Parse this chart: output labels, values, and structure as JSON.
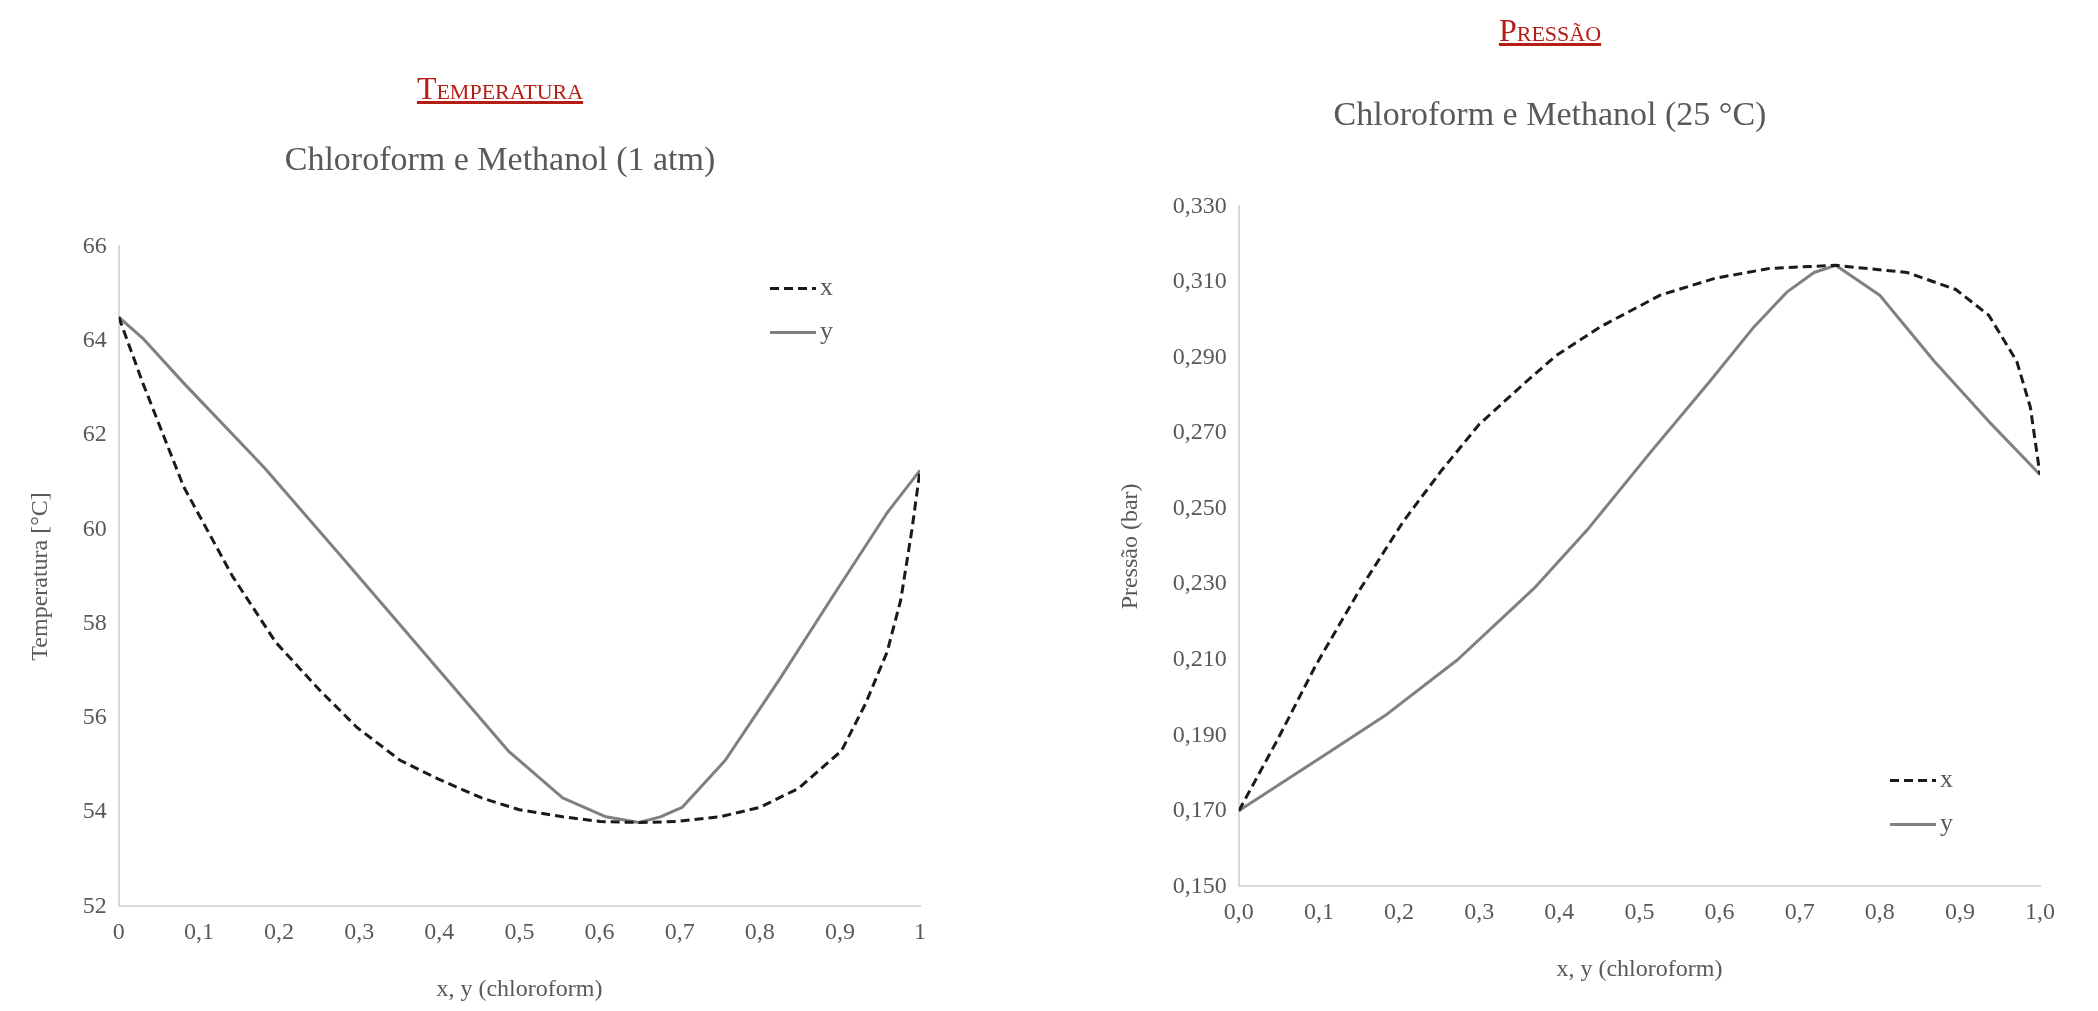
{
  "chart_data": [
    {
      "type": "line",
      "title": "Temperatura",
      "subtitle": "Chloroform e Methanol (1 atm)",
      "xlabel": "x, y (chloroform)",
      "ylabel": "Temperatura [°C]",
      "marker": "none",
      "legend": "top right",
      "xlim": [
        0,
        1
      ],
      "ylim": [
        52,
        66
      ],
      "xticks": [
        0,
        {
          "value": 0.1,
          "label": "0,1"
        },
        {
          "value": 0.2,
          "label": "0,2"
        },
        {
          "value": 0.3,
          "label": "0,3"
        },
        {
          "value": 0.4,
          "label": "0,4"
        },
        {
          "value": 0.5,
          "label": "0,5"
        },
        {
          "value": 0.6,
          "label": "0,6"
        },
        {
          "value": 0.7,
          "label": "0,7"
        },
        {
          "value": 0.8,
          "label": "0,8"
        },
        {
          "value": 0.9,
          "label": "0,9"
        },
        1
      ],
      "yticks": [
        52,
        54,
        56,
        58,
        60,
        62,
        64,
        66
      ],
      "series": [
        {
          "name": "x",
          "color": "#1a1a1a",
          "line_style": "dashed",
          "x": [
            0,
            0.03,
            0.081,
            0.142,
            0.196,
            0.25,
            0.297,
            0.351,
            0.399,
            0.453,
            0.5,
            0.554,
            0.601,
            0.649,
            0.696,
            0.75,
            0.8,
            0.848,
            0.902,
            0.932,
            0.959,
            0.976,
            0.99,
            1
          ],
          "values": [
            64.5,
            63.1,
            60.9,
            59.0,
            57.6,
            56.6,
            55.8,
            55.1,
            54.7,
            54.3,
            54.05,
            53.9,
            53.8,
            53.78,
            53.8,
            53.9,
            54.1,
            54.5,
            55.3,
            56.3,
            57.4,
            58.5,
            60.0,
            61.25
          ]
        },
        {
          "name": "y",
          "color": "#808080",
          "line_style": "solid",
          "x": [
            0,
            0.03,
            0.081,
            0.182,
            0.284,
            0.385,
            0.486,
            0.554,
            0.608,
            0.649,
            0.676,
            0.703,
            0.757,
            0.824,
            0.892,
            0.959,
            1
          ],
          "values": [
            64.5,
            64.05,
            63.1,
            61.3,
            59.3,
            57.3,
            55.3,
            54.3,
            53.9,
            53.78,
            53.9,
            54.1,
            55.1,
            56.8,
            58.6,
            60.35,
            61.25
          ]
        }
      ]
    },
    {
      "type": "line",
      "title": "Pressão",
      "subtitle": "Chloroform e Methanol (25 °C)",
      "xlabel": "x, y (chloroform)",
      "ylabel": "Pressão (bar)",
      "marker": "none",
      "legend": "bottom right",
      "xlim": [
        0,
        1
      ],
      "ylim": [
        0.15,
        0.33
      ],
      "xticks": [
        {
          "value": 0,
          "label": "0,0"
        },
        {
          "value": 0.1,
          "label": "0,1"
        },
        {
          "value": 0.2,
          "label": "0,2"
        },
        {
          "value": 0.3,
          "label": "0,3"
        },
        {
          "value": 0.4,
          "label": "0,4"
        },
        {
          "value": 0.5,
          "label": "0,5"
        },
        {
          "value": 0.6,
          "label": "0,6"
        },
        {
          "value": 0.7,
          "label": "0,7"
        },
        {
          "value": 0.8,
          "label": "0,8"
        },
        {
          "value": 0.9,
          "label": "0,9"
        },
        {
          "value": 1,
          "label": "1,0"
        }
      ],
      "yticks": [
        {
          "value": 0.15,
          "label": "0,150"
        },
        {
          "value": 0.17,
          "label": "0,170"
        },
        {
          "value": 0.19,
          "label": "0,190"
        },
        {
          "value": 0.21,
          "label": "0,210"
        },
        {
          "value": 0.23,
          "label": "0,230"
        },
        {
          "value": 0.25,
          "label": "0,250"
        },
        {
          "value": 0.27,
          "label": "0,270"
        },
        {
          "value": 0.29,
          "label": "0,290"
        },
        {
          "value": 0.31,
          "label": "0,310"
        },
        {
          "value": 0.33,
          "label": "0,330"
        }
      ],
      "series": [
        {
          "name": "x",
          "color": "#1a1a1a",
          "line_style": "dashed",
          "x": [
            0,
            0.048,
            0.096,
            0.15,
            0.205,
            0.253,
            0.3,
            0.355,
            0.396,
            0.451,
            0.526,
            0.595,
            0.663,
            0.745,
            0.834,
            0.895,
            0.936,
            0.971,
            0.988,
            1
          ],
          "values": [
            0.17,
            0.1887,
            0.2085,
            0.2282,
            0.2465,
            0.2601,
            0.2723,
            0.2829,
            0.2905,
            0.2981,
            0.3065,
            0.311,
            0.3136,
            0.3144,
            0.3125,
            0.308,
            0.3012,
            0.289,
            0.2768,
            0.259
          ]
        },
        {
          "name": "y",
          "color": "#808080",
          "line_style": "solid",
          "x": [
            0,
            0.103,
            0.185,
            0.273,
            0.369,
            0.437,
            0.513,
            0.588,
            0.643,
            0.684,
            0.718,
            0.745,
            0.8,
            0.868,
            0.936,
            1
          ],
          "values": [
            0.17,
            0.1842,
            0.1956,
            0.21,
            0.229,
            0.2449,
            0.2647,
            0.2837,
            0.2981,
            0.3073,
            0.3125,
            0.3144,
            0.3065,
            0.289,
            0.2731,
            0.259
          ]
        }
      ]
    }
  ]
}
